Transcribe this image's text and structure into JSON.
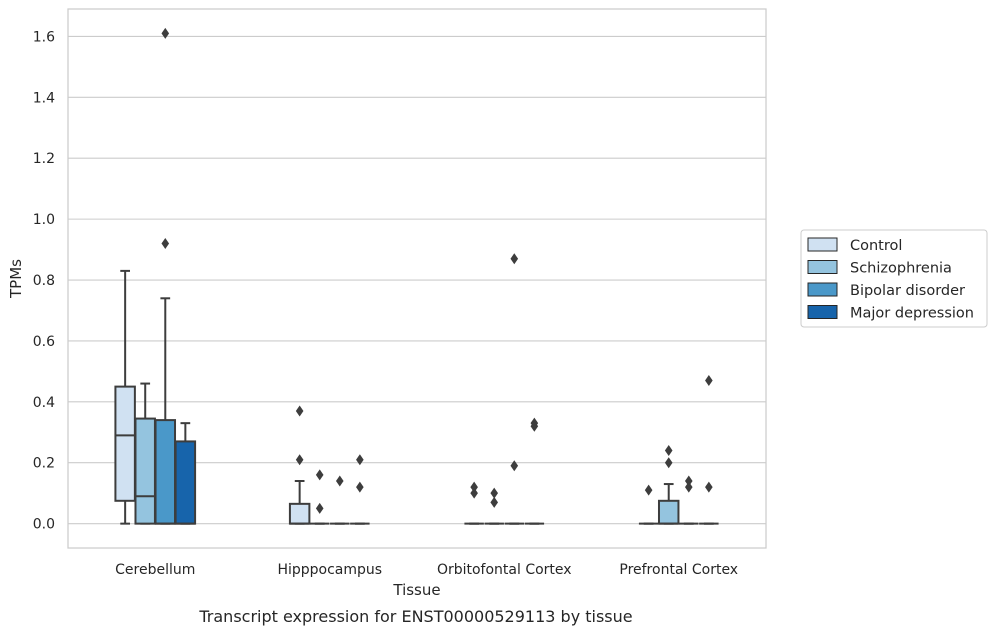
{
  "chart_data": {
    "type": "box",
    "caption": "Transcript expression for ENST00000529113 by tissue",
    "xlabel": "Tissue",
    "ylabel": "TPMs",
    "ylim": [
      -0.08,
      1.69
    ],
    "yticks": [
      0.0,
      0.2,
      0.4,
      0.6,
      0.8,
      1.0,
      1.2,
      1.4,
      1.6
    ],
    "ytick_labels": [
      "0.0",
      "0.2",
      "0.4",
      "0.6",
      "0.8",
      "1.0",
      "1.2",
      "1.4",
      "1.6"
    ],
    "grid": "horizontal",
    "legend_position": "right",
    "categories": [
      "Cerebellum",
      "Hipppocampus",
      "Orbitofontal Cortex",
      "Prefrontal Cortex"
    ],
    "series": [
      {
        "name": "Control",
        "color": "#d0e1f2",
        "boxes": [
          {
            "whislo": 0.0,
            "q1": 0.075,
            "med": 0.29,
            "q3": 0.45,
            "whishi": 0.83,
            "fliers": []
          },
          {
            "whislo": 0.0,
            "q1": 0.0,
            "med": 0.0,
            "q3": 0.065,
            "whishi": 0.14,
            "fliers": [
              0.37,
              0.21
            ]
          },
          {
            "whislo": 0.0,
            "q1": 0.0,
            "med": 0.0,
            "q3": 0.0,
            "whishi": 0.0,
            "fliers": [
              0.12,
              0.1
            ]
          },
          {
            "whislo": 0.0,
            "q1": 0.0,
            "med": 0.0,
            "q3": 0.0,
            "whishi": 0.0,
            "fliers": [
              0.11
            ]
          }
        ]
      },
      {
        "name": "Schizophrenia",
        "color": "#94c4df",
        "boxes": [
          {
            "whislo": 0.0,
            "q1": 0.0,
            "med": 0.09,
            "q3": 0.345,
            "whishi": 0.46,
            "fliers": []
          },
          {
            "whislo": 0.0,
            "q1": 0.0,
            "med": 0.0,
            "q3": 0.0,
            "whishi": 0.0,
            "fliers": [
              0.16,
              0.05
            ]
          },
          {
            "whislo": 0.0,
            "q1": 0.0,
            "med": 0.0,
            "q3": 0.0,
            "whishi": 0.0,
            "fliers": [
              0.1,
              0.07
            ]
          },
          {
            "whislo": 0.0,
            "q1": 0.0,
            "med": 0.0,
            "q3": 0.075,
            "whishi": 0.13,
            "fliers": [
              0.24,
              0.2
            ]
          }
        ]
      },
      {
        "name": "Bipolar disorder",
        "color": "#4a98c9",
        "boxes": [
          {
            "whislo": 0.0,
            "q1": 0.0,
            "med": 0.0,
            "q3": 0.34,
            "whishi": 0.74,
            "fliers": [
              1.61,
              0.92
            ]
          },
          {
            "whislo": 0.0,
            "q1": 0.0,
            "med": 0.0,
            "q3": 0.0,
            "whishi": 0.0,
            "fliers": [
              0.14
            ]
          },
          {
            "whislo": 0.0,
            "q1": 0.0,
            "med": 0.0,
            "q3": 0.0,
            "whishi": 0.0,
            "fliers": [
              0.87,
              0.19
            ]
          },
          {
            "whislo": 0.0,
            "q1": 0.0,
            "med": 0.0,
            "q3": 0.0,
            "whishi": 0.0,
            "fliers": [
              0.14,
              0.12
            ]
          }
        ]
      },
      {
        "name": "Major depression",
        "color": "#1764ab",
        "boxes": [
          {
            "whislo": 0.0,
            "q1": 0.0,
            "med": 0.0,
            "q3": 0.27,
            "whishi": 0.33,
            "fliers": []
          },
          {
            "whislo": 0.0,
            "q1": 0.0,
            "med": 0.0,
            "q3": 0.0,
            "whishi": 0.0,
            "fliers": [
              0.21,
              0.12
            ]
          },
          {
            "whislo": 0.0,
            "q1": 0.0,
            "med": 0.0,
            "q3": 0.0,
            "whishi": 0.0,
            "fliers": [
              0.33,
              0.32
            ]
          },
          {
            "whislo": 0.0,
            "q1": 0.0,
            "med": 0.0,
            "q3": 0.0,
            "whishi": 0.0,
            "fliers": [
              0.47,
              0.12
            ]
          }
        ]
      }
    ]
  }
}
